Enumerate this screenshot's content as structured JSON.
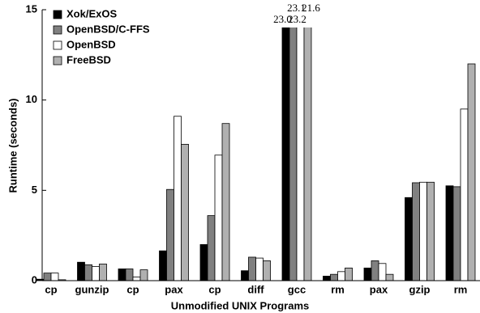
{
  "chart_data": {
    "type": "bar",
    "x_label": "Unmodified UNIX Programs",
    "y_label": "Runtime (seconds)",
    "categories": [
      "cp",
      "gunzip",
      "cp",
      "pax",
      "cp",
      "diff",
      "gcc",
      "rm",
      "pax",
      "gzip",
      "rm"
    ],
    "series": [
      {
        "name": "Xok/ExOS",
        "color": "#000000",
        "values": [
          0.08,
          1.02,
          0.65,
          1.65,
          2.0,
          0.55,
          23.0,
          0.25,
          0.7,
          4.6,
          5.25
        ],
        "value_labels": [
          null,
          null,
          null,
          null,
          null,
          null,
          "23.0",
          null,
          null,
          null,
          null
        ]
      },
      {
        "name": "OpenBSD/C-FFS",
        "color": "#808080",
        "values": [
          0.42,
          0.88,
          0.65,
          5.05,
          3.6,
          1.3,
          23.1,
          0.35,
          1.1,
          5.42,
          5.2
        ],
        "value_labels": [
          null,
          null,
          null,
          null,
          null,
          null,
          "23.1",
          null,
          null,
          null,
          null
        ]
      },
      {
        "name": "OpenBSD",
        "color": "#ffffff",
        "values": [
          0.42,
          0.78,
          0.2,
          9.1,
          6.95,
          1.25,
          23.2,
          0.5,
          0.95,
          5.45,
          9.5
        ],
        "value_labels": [
          null,
          null,
          null,
          null,
          null,
          null,
          "23.2",
          null,
          null,
          null,
          null
        ]
      },
      {
        "name": "FreeBSD",
        "color": "#b0b0b0",
        "values": [
          0.05,
          0.92,
          0.6,
          7.55,
          8.7,
          1.1,
          21.6,
          0.7,
          0.35,
          5.45,
          12.0
        ],
        "value_labels": [
          null,
          null,
          null,
          null,
          null,
          null,
          "21.6",
          null,
          null,
          null,
          null
        ]
      }
    ],
    "ylim": [
      0,
      15
    ],
    "yticks": [
      0,
      5,
      10,
      15
    ],
    "legend": "top-left"
  }
}
